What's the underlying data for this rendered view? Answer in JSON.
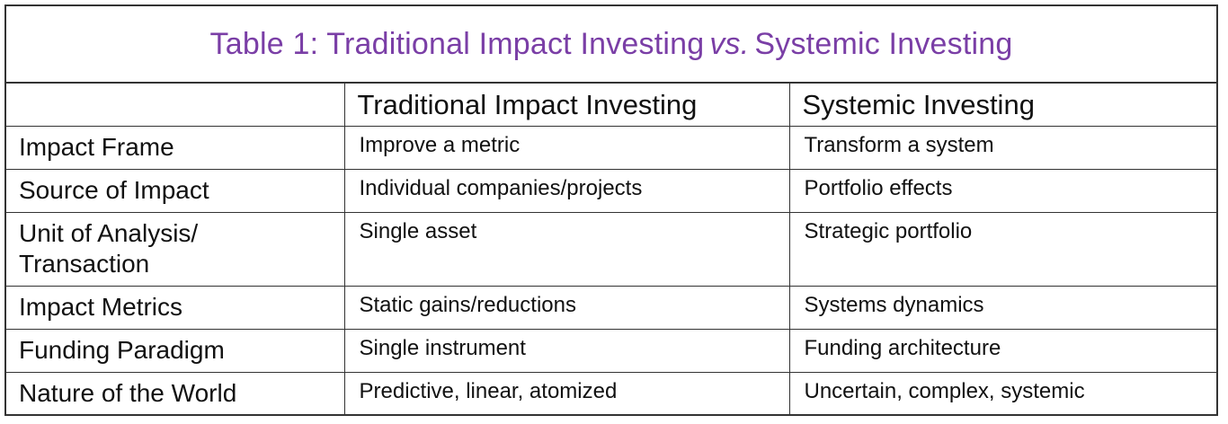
{
  "title": {
    "prefix": "Table 1:  Traditional Impact Investing",
    "vs": "vs.",
    "suffix": "Systemic Investing"
  },
  "columns": [
    "",
    "Traditional Impact Investing",
    "Systemic Investing"
  ],
  "rows": [
    {
      "label": "Impact Frame",
      "traditional": "Improve a metric",
      "systemic": "Transform a system"
    },
    {
      "label": "Source of Impact",
      "traditional": "Individual companies/projects",
      "systemic": "Portfolio effects"
    },
    {
      "label": "Unit of Analysis/\nTransaction",
      "label_line1": "Unit of Analysis/",
      "label_line2": "Transaction",
      "traditional": "Single asset",
      "systemic": "Strategic portfolio"
    },
    {
      "label": "Impact Metrics",
      "traditional": "Static gains/reductions",
      "systemic": "Systems dynamics"
    },
    {
      "label": "Funding Paradigm",
      "traditional": "Single instrument",
      "systemic": "Funding architecture"
    },
    {
      "label": "Nature of the World",
      "traditional": "Predictive, linear, atomized",
      "systemic": "Uncertain, complex, systemic"
    }
  ],
  "colors": {
    "title": "#7a3ea6",
    "border": "#333333",
    "text": "#111111"
  }
}
